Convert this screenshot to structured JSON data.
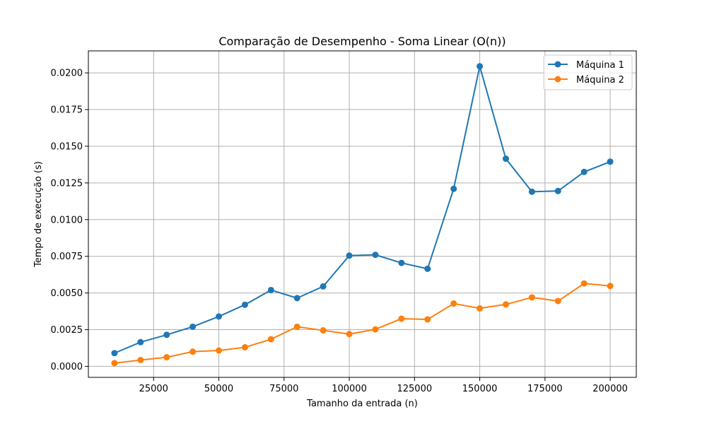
{
  "chart_data": {
    "type": "line",
    "title": "Comparação de Desempenho - Soma Linear (O(n))",
    "xlabel": "Tamanho da entrada (n)",
    "ylabel": "Tempo de execução (s)",
    "xlim": [
      0,
      210000
    ],
    "ylim": [
      -0.00075,
      0.0215
    ],
    "x_ticks": [
      25000,
      50000,
      75000,
      100000,
      125000,
      150000,
      175000,
      200000
    ],
    "x_tick_labels": [
      "25000",
      "50000",
      "75000",
      "100000",
      "125000",
      "150000",
      "175000",
      "200000"
    ],
    "y_ticks": [
      0.0,
      0.0025,
      0.005,
      0.0075,
      0.01,
      0.0125,
      0.015,
      0.0175,
      0.02
    ],
    "y_tick_labels": [
      "0.0000",
      "0.0025",
      "0.0050",
      "0.0075",
      "0.0100",
      "0.0125",
      "0.0150",
      "0.0175",
      "0.0200"
    ],
    "grid": true,
    "legend_position": "top-right",
    "x": [
      10000,
      20000,
      30000,
      40000,
      50000,
      60000,
      70000,
      80000,
      90000,
      100000,
      110000,
      120000,
      130000,
      140000,
      150000,
      160000,
      170000,
      180000,
      190000,
      200000
    ],
    "series": [
      {
        "name": "Máquina 1",
        "color": "#1f77b4",
        "values": [
          0.0009,
          0.00165,
          0.00215,
          0.0027,
          0.0034,
          0.0042,
          0.0052,
          0.00465,
          0.00545,
          0.00755,
          0.0076,
          0.00705,
          0.00665,
          0.0121,
          0.02045,
          0.01415,
          0.0119,
          0.01195,
          0.01325,
          0.01395
        ]
      },
      {
        "name": "Máquina 2",
        "color": "#ff7f0e",
        "values": [
          0.00022,
          0.00043,
          0.00062,
          0.001,
          0.00108,
          0.0013,
          0.00185,
          0.0027,
          0.00245,
          0.0022,
          0.00252,
          0.00325,
          0.0032,
          0.00428,
          0.00395,
          0.00422,
          0.0047,
          0.00445,
          0.00565,
          0.00548
        ]
      }
    ]
  }
}
